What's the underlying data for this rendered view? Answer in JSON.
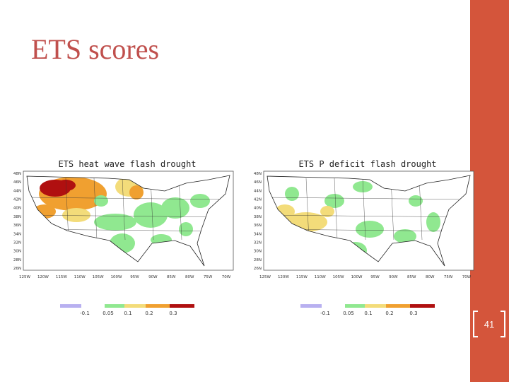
{
  "slide": {
    "title": "ETS scores",
    "page_number": "41"
  },
  "maps": [
    {
      "title": "ETS heat wave flash drought",
      "lat_ticks": [
        "48N",
        "46N",
        "44N",
        "42N",
        "40N",
        "38N",
        "36N",
        "34N",
        "32N",
        "30N",
        "28N",
        "26N"
      ],
      "lon_ticks": [
        "125W",
        "120W",
        "115W",
        "110W",
        "105W",
        "100W",
        "95W",
        "90W",
        "85W",
        "80W",
        "75W",
        "70W"
      ],
      "legend_labels": [
        "-0.1",
        "0.05",
        "0.1",
        "0.2",
        "0.3"
      ]
    },
    {
      "title": "ETS P deficit flash drought",
      "lat_ticks": [
        "48N",
        "46N",
        "44N",
        "42N",
        "40N",
        "38N",
        "36N",
        "34N",
        "32N",
        "30N",
        "28N",
        "26N"
      ],
      "lon_ticks": [
        "125W",
        "120W",
        "115W",
        "110W",
        "105W",
        "100W",
        "95W",
        "90W",
        "85W",
        "80W",
        "75W",
        "70W"
      ],
      "legend_labels": [
        "-0.1",
        "0.05",
        "0.1",
        "0.2",
        "0.3"
      ]
    }
  ]
}
